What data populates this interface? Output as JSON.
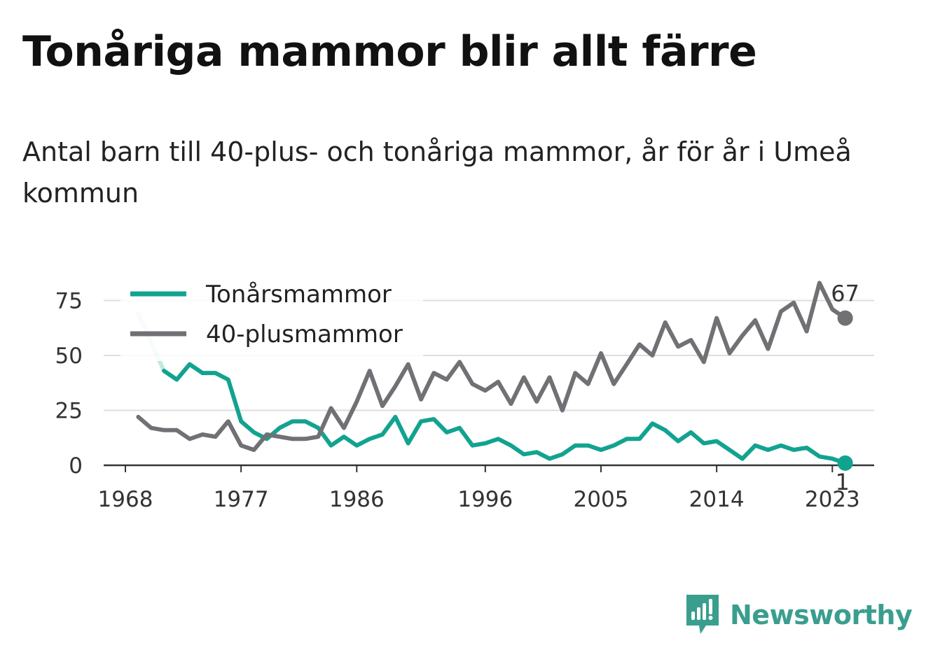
{
  "title": "Tonåriga mammor blir allt färre",
  "subtitle": "Antal barn till 40-plus- och tonåriga mammor, år för år i Umeå kommun",
  "brand": {
    "name": "Newsworthy",
    "icon": "newsworthy-logo-icon",
    "color": "#3a9e8e"
  },
  "chart_data": {
    "type": "line",
    "x": [
      1969,
      1970,
      1971,
      1972,
      1973,
      1974,
      1975,
      1976,
      1977,
      1978,
      1979,
      1980,
      1981,
      1982,
      1983,
      1984,
      1985,
      1986,
      1987,
      1988,
      1989,
      1990,
      1991,
      1992,
      1993,
      1994,
      1995,
      1996,
      1997,
      1998,
      1999,
      2000,
      2001,
      2002,
      2003,
      2004,
      2005,
      2006,
      2007,
      2008,
      2009,
      2010,
      2011,
      2012,
      2013,
      2014,
      2015,
      2016,
      2017,
      2018,
      2019,
      2020,
      2021,
      2022,
      2023,
      2024
    ],
    "series": [
      {
        "name": "Tonårsmammor",
        "color": "#12a390",
        "values": [
          69,
          56,
          43,
          39,
          46,
          42,
          42,
          39,
          20,
          15,
          12,
          17,
          20,
          20,
          17,
          9,
          13,
          9,
          12,
          14,
          22,
          10,
          20,
          21,
          15,
          17,
          9,
          10,
          12,
          9,
          5,
          6,
          3,
          5,
          9,
          9,
          7,
          9,
          12,
          12,
          19,
          16,
          11,
          15,
          10,
          11,
          7,
          3,
          9,
          7,
          9,
          7,
          8,
          4,
          3,
          1
        ]
      },
      {
        "name": "40-plusmammor",
        "color": "#707075",
        "values": [
          22,
          17,
          16,
          16,
          12,
          14,
          13,
          20,
          9,
          7,
          14,
          13,
          12,
          12,
          13,
          26,
          17,
          29,
          43,
          27,
          36,
          46,
          30,
          42,
          39,
          47,
          37,
          34,
          38,
          28,
          40,
          29,
          40,
          25,
          42,
          37,
          51,
          37,
          46,
          55,
          50,
          65,
          54,
          57,
          47,
          67,
          51,
          59,
          66,
          53,
          70,
          74,
          61,
          83,
          71,
          67
        ]
      }
    ],
    "x_ticks": [
      "1968",
      "1977",
      "1986",
      "1996",
      "2005",
      "2014",
      "2023"
    ],
    "y_ticks": [
      "0",
      "25",
      "50",
      "75"
    ],
    "ylim": [
      0,
      88
    ],
    "xlim": [
      1968,
      2025
    ],
    "grid": true,
    "legend_position": "top-left",
    "end_labels": {
      "40-plusmammor": "67",
      "Tonårsmammor": "1"
    }
  }
}
